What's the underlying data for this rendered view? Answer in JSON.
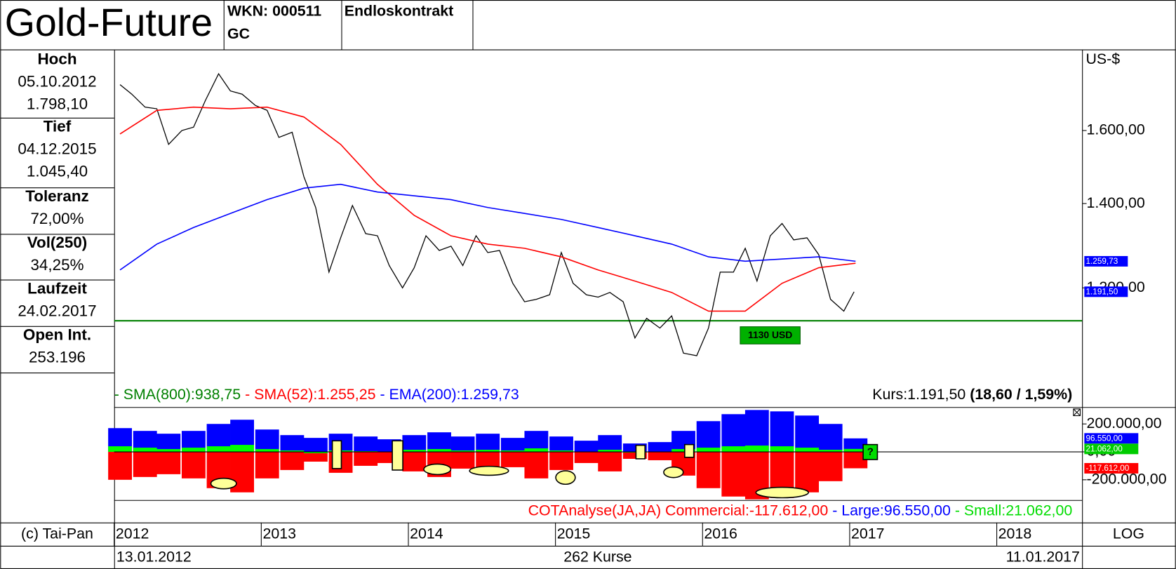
{
  "header": {
    "title": "Gold-Future",
    "wkn": "WKN: 000511",
    "symbol": "GC",
    "contract": "Endloskontrakt"
  },
  "sidebar": [
    {
      "label": "Hoch",
      "lines": [
        "05.10.2012",
        "1.798,10"
      ]
    },
    {
      "label": "Tief",
      "lines": [
        "04.12.2015",
        "1.045,40"
      ]
    },
    {
      "label": "Toleranz",
      "lines": [
        "72,00%"
      ]
    },
    {
      "label": "Vol(250)",
      "lines": [
        "34,25%"
      ]
    },
    {
      "label": "Laufzeit",
      "lines": [
        "24.02.2017"
      ]
    },
    {
      "label": "Open Int.",
      "lines": [
        "253.196"
      ]
    }
  ],
  "footer": {
    "copyright": "(c) Tai-Pan",
    "scale": "LOG",
    "start": "13.01.2012",
    "count": "262 Kurse",
    "end": "11.01.2017"
  },
  "chart_data": [
    {
      "type": "line",
      "y_label": "US-$",
      "log_scale": true,
      "xlim": [
        2012,
        2018.58
      ],
      "xticks": [
        2012,
        2013,
        2014,
        2015,
        2016,
        2017,
        2018
      ],
      "ylim": [
        965,
        1853
      ],
      "yticks": [
        {
          "value": 1200,
          "label": "1.200,00"
        },
        {
          "value": 1400,
          "label": "1.400,00"
        },
        {
          "value": 1600,
          "label": "1.600,00"
        }
      ],
      "series": [
        {
          "color": "#000000",
          "x": [
            2012.04,
            2012.12,
            2012.21,
            2012.29,
            2012.37,
            2012.46,
            2012.54,
            2012.62,
            2012.71,
            2012.79,
            2012.87,
            2012.96,
            2013.04,
            2013.12,
            2013.21,
            2013.29,
            2013.37,
            2013.46,
            2013.54,
            2013.62,
            2013.71,
            2013.79,
            2013.87,
            2013.96,
            2014.04,
            2014.12,
            2014.21,
            2014.29,
            2014.37,
            2014.46,
            2014.54,
            2014.62,
            2014.71,
            2014.79,
            2014.87,
            2014.96,
            2015.04,
            2015.12,
            2015.21,
            2015.29,
            2015.37,
            2015.46,
            2015.54,
            2015.62,
            2015.71,
            2015.79,
            2015.87,
            2015.96,
            2016.04,
            2016.12,
            2016.21,
            2016.29,
            2016.37,
            2016.46,
            2016.54,
            2016.62,
            2016.71,
            2016.79,
            2016.87,
            2016.96,
            2017.03
          ],
          "values": [
            1740,
            1710,
            1670,
            1665,
            1560,
            1600,
            1610,
            1690,
            1775,
            1720,
            1710,
            1675,
            1660,
            1580,
            1595,
            1470,
            1390,
            1235,
            1315,
            1395,
            1325,
            1320,
            1250,
            1200,
            1245,
            1320,
            1285,
            1295,
            1250,
            1320,
            1280,
            1285,
            1210,
            1170,
            1175,
            1185,
            1280,
            1210,
            1185,
            1180,
            1190,
            1170,
            1095,
            1135,
            1115,
            1140,
            1065,
            1060,
            1115,
            1235,
            1235,
            1290,
            1215,
            1320,
            1350,
            1310,
            1315,
            1275,
            1175,
            1150,
            1191.5
          ]
        },
        {
          "color": "#ff0000",
          "x": [
            2012.04,
            2012.29,
            2012.54,
            2012.79,
            2013.04,
            2013.29,
            2013.54,
            2013.79,
            2014.04,
            2014.29,
            2014.54,
            2014.79,
            2015.04,
            2015.29,
            2015.54,
            2015.79,
            2016.04,
            2016.29,
            2016.54,
            2016.79,
            2017.04
          ],
          "values": [
            1590,
            1660,
            1670,
            1665,
            1670,
            1640,
            1560,
            1450,
            1370,
            1320,
            1300,
            1290,
            1270,
            1240,
            1215,
            1190,
            1150,
            1150,
            1210,
            1245,
            1255.25
          ]
        },
        {
          "color": "#0000ff",
          "x": [
            2012.04,
            2012.29,
            2012.54,
            2012.79,
            2013.04,
            2013.29,
            2013.54,
            2013.79,
            2014.04,
            2014.29,
            2014.54,
            2014.79,
            2015.04,
            2015.29,
            2015.54,
            2015.79,
            2016.04,
            2016.29,
            2016.54,
            2016.79,
            2017.04
          ],
          "values": [
            1240,
            1300,
            1340,
            1375,
            1410,
            1440,
            1450,
            1430,
            1420,
            1410,
            1390,
            1375,
            1360,
            1340,
            1320,
            1300,
            1270,
            1260,
            1265,
            1270,
            1259.73
          ]
        }
      ],
      "support": {
        "value": 1130,
        "label": "1130 USD",
        "color": "#008000"
      },
      "legend": [
        {
          "text": "- SMA(800):938,75",
          "color": "#008000"
        },
        {
          "text": " - SMA(52):1.255,25",
          "color": "#ff0000"
        },
        {
          "text": " - EMA(200):1.259,73",
          "color": "#0000ff"
        }
      ],
      "quote": "Kurs:1.191,50 ",
      "change": "(18,60 / 1,59%)",
      "price_tags": [
        {
          "value": 1259.73,
          "label": "1.259,73",
          "color": "#0000ff"
        },
        {
          "value": 1191.5,
          "label": "1.191,50",
          "color": "#0000ff"
        }
      ]
    },
    {
      "type": "bar",
      "xlim": [
        2012,
        2018.58
      ],
      "ylim": [
        -345000,
        310000
      ],
      "yticks": [
        {
          "value": 200000,
          "label": "200.000,00"
        },
        {
          "value": 0,
          "label": "0,00"
        },
        {
          "value": -200000,
          "label": "-200.000,00"
        }
      ],
      "x": [
        2012.04,
        2012.21,
        2012.37,
        2012.54,
        2012.71,
        2012.87,
        2013.04,
        2013.21,
        2013.37,
        2013.54,
        2013.71,
        2013.87,
        2014.04,
        2014.21,
        2014.37,
        2014.54,
        2014.71,
        2014.87,
        2015.04,
        2015.21,
        2015.37,
        2015.54,
        2015.71,
        2015.87,
        2016.04,
        2016.21,
        2016.37,
        2016.54,
        2016.71,
        2016.87,
        2017.04
      ],
      "series": [
        {
          "color": "#ff0000",
          "values": [
            -200000,
            -180000,
            -160000,
            -190000,
            -260000,
            -290000,
            -190000,
            -130000,
            -70000,
            -150000,
            -100000,
            -80000,
            -140000,
            -180000,
            -120000,
            -150000,
            -110000,
            -190000,
            -130000,
            -80000,
            -140000,
            -50000,
            -60000,
            -170000,
            -260000,
            -320000,
            -340000,
            -330000,
            -290000,
            -210000,
            -117612
          ]
        },
        {
          "color": "#0000ff",
          "values": [
            170000,
            150000,
            130000,
            150000,
            200000,
            230000,
            160000,
            120000,
            100000,
            130000,
            110000,
            90000,
            120000,
            140000,
            110000,
            130000,
            100000,
            150000,
            110000,
            80000,
            120000,
            60000,
            70000,
            150000,
            220000,
            270000,
            300000,
            290000,
            260000,
            200000,
            96550
          ]
        },
        {
          "color": "#00ff00",
          "values": [
            40000,
            30000,
            20000,
            30000,
            40000,
            50000,
            20000,
            10000,
            -10000,
            10000,
            5000,
            0,
            15000,
            20000,
            10000,
            15000,
            10000,
            25000,
            10000,
            0,
            15000,
            -5000,
            0,
            20000,
            30000,
            40000,
            45000,
            40000,
            30000,
            15000,
            21062
          ]
        }
      ],
      "legend": [
        {
          "text": "COTAnalyse(JA,JA) Commercial:-117.612,00",
          "color": "#ff0000"
        },
        {
          "text": " - Large:96.550,00",
          "color": "#0000ff"
        },
        {
          "text": " - Small:21.062,00",
          "color": "#00dd00"
        }
      ],
      "price_tags": [
        {
          "value": 96550,
          "label": "96.550,00",
          "color": "#0000ff"
        },
        {
          "value": 21062,
          "label": "21.062,00",
          "color": "#00cc00"
        },
        {
          "value": -117612,
          "label": "-117.612,00",
          "color": "#ff0000"
        }
      ],
      "signal": "?"
    }
  ]
}
